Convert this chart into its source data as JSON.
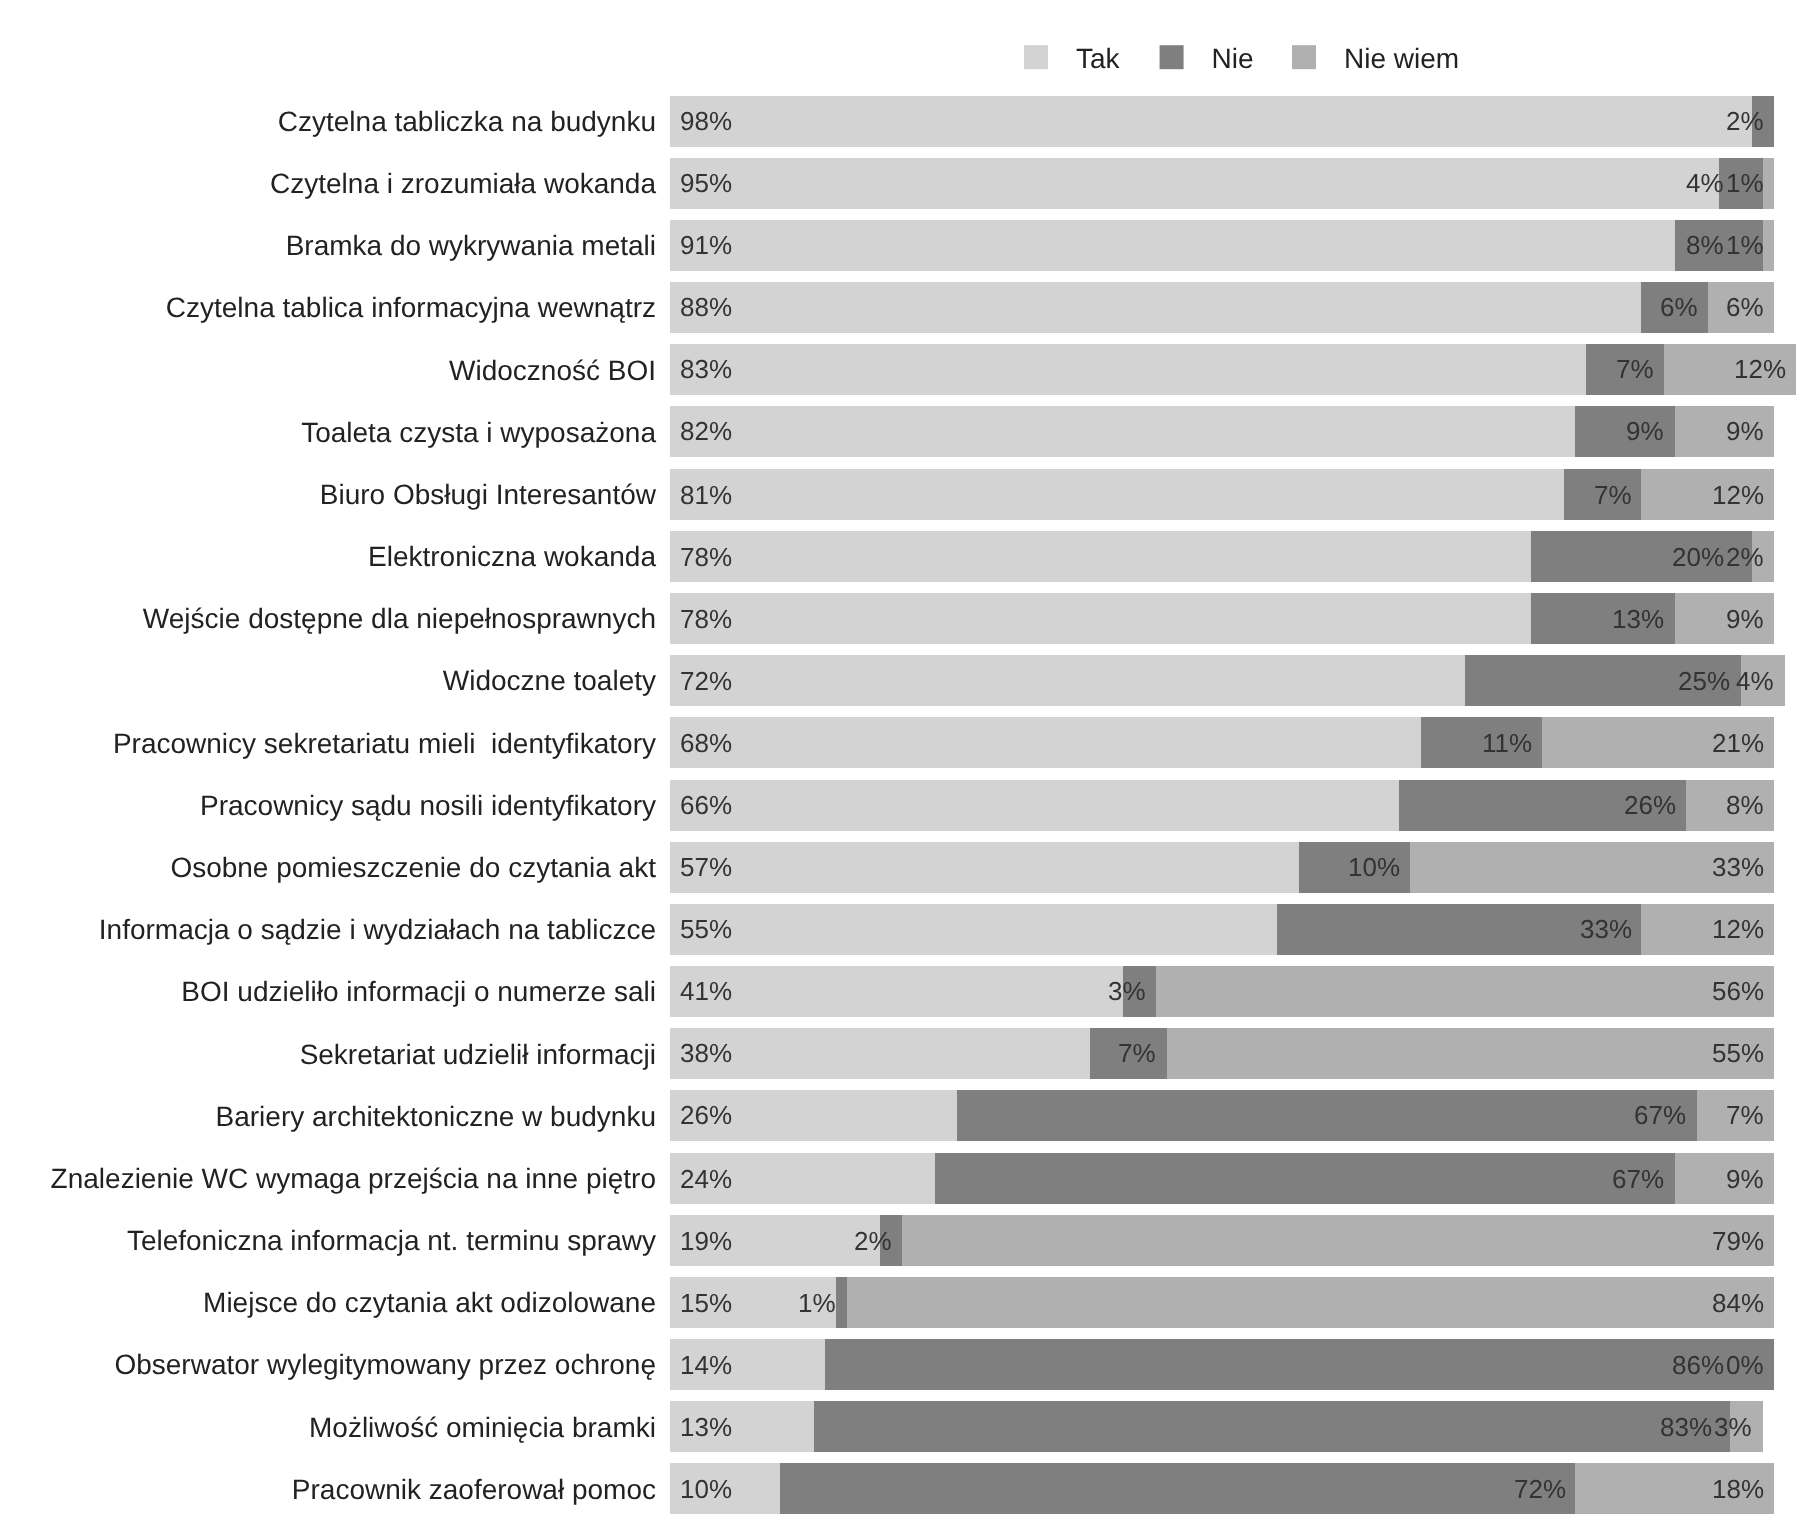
{
  "chart_data": {
    "type": "bar",
    "orientation": "horizontal",
    "stacked": true,
    "legend": "top",
    "categories": [
      "Czytelna tabliczka na budynku",
      "Czytelna i zrozumiała wokanda",
      "Bramka do wykrywania metali",
      "Czytelna tablica informacyjna wewnątrz",
      "Widoczność BOI",
      "Toaleta czysta i wyposażona",
      "Biuro Obsługi Interesantów",
      "Elektroniczna wokanda",
      "Wejście dostępne dla niepełnosprawnych",
      "Widoczne toalety",
      "Pracownicy sekretariatu mieli  identyfikatory",
      "Pracownicy sądu nosili identyfikatory",
      "Osobne pomieszczenie do czytania akt",
      "Informacja o sądzie i wydziałach na tabliczce",
      "BOI udzieliło informacji o numerze sali",
      "Sekretariat udzielił informacji",
      "Bariery architektoniczne w budynku",
      "Znalezienie WC wymaga przejścia na inne piętro",
      "Telefoniczna informacja nt. terminu sprawy",
      "Miejsce do czytania akt odizolowane",
      "Obserwator wylegitymowany przez ochronę",
      "Możliwość ominięcia bramki",
      "Pracownik zaoferował pomoc"
    ],
    "series": [
      {
        "name": "Tak",
        "color": "#d3d3d3",
        "values": [
          98,
          95,
          91,
          88,
          83,
          82,
          81,
          78,
          78,
          72,
          68,
          66,
          57,
          55,
          41,
          38,
          26,
          24,
          19,
          15,
          14,
          13,
          10
        ],
        "value_labels": [
          "98%",
          "95%",
          "91%",
          "88%",
          "83%",
          "82%",
          "81%",
          "78%",
          "78%",
          "72%",
          "68%",
          "66%",
          "57%",
          "55%",
          "41%",
          "38%",
          "26%",
          "24%",
          "19%",
          "15%",
          "14%",
          "13%",
          "10%"
        ]
      },
      {
        "name": "Nie",
        "color": "#7f7f7f",
        "values": [
          2,
          4,
          8,
          6,
          7,
          9,
          7,
          20,
          13,
          25,
          11,
          26,
          10,
          33,
          3,
          7,
          67,
          67,
          2,
          1,
          86,
          83,
          72
        ],
        "value_labels": [
          "2%",
          "4%",
          "8%",
          "6%",
          "7%",
          "9%",
          "7%",
          "20%",
          "13%",
          "25%",
          "11%",
          "26%",
          "10%",
          "33%",
          "3%",
          "7%",
          "67%",
          "67%",
          "2%",
          "1%",
          "86%",
          "83%",
          "72%"
        ]
      },
      {
        "name": "Nie wiem",
        "color": "#b0b0b0",
        "values": [
          null,
          1,
          1,
          6,
          12,
          9,
          12,
          2,
          9,
          4,
          21,
          8,
          33,
          12,
          56,
          55,
          7,
          9,
          79,
          84,
          0,
          3,
          18
        ],
        "value_labels": [
          null,
          "1%",
          "1%",
          "6%",
          "12%",
          "9%",
          "12%",
          "2%",
          "9%",
          "4%",
          "21%",
          "8%",
          "33%",
          "12%",
          "56%",
          "55%",
          "7%",
          "9%",
          "79%",
          "84%",
          "0%",
          "3%",
          "18%"
        ]
      }
    ]
  }
}
